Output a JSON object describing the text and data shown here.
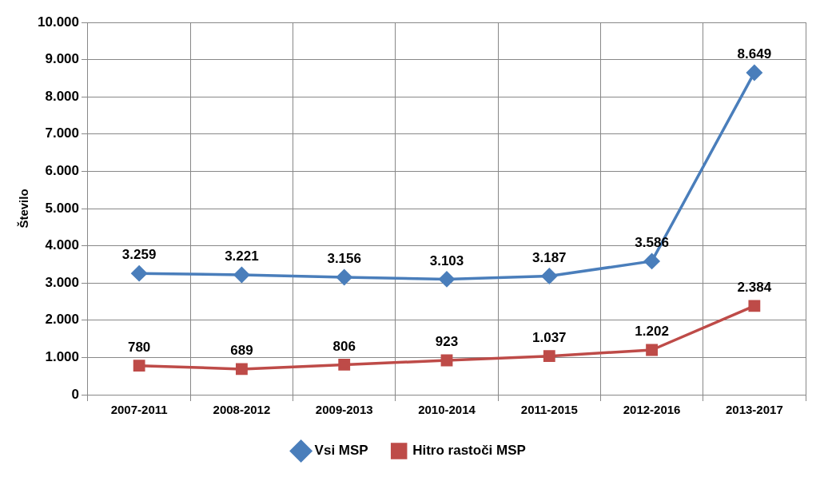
{
  "chart_data": {
    "type": "line",
    "ylabel": "Število",
    "categories": [
      "2007-2011",
      "2008-2012",
      "2009-2013",
      "2010-2014",
      "2011-2015",
      "2012-2016",
      "2013-2017"
    ],
    "series": [
      {
        "name": "Vsi MSP",
        "color": "#4a7ebb",
        "marker": "diamond",
        "values": [
          3259,
          3221,
          3156,
          3103,
          3187,
          3586,
          8649
        ],
        "value_labels": [
          "3.259",
          "3.221",
          "3.156",
          "3.103",
          "3.187",
          "3.586",
          "8.649"
        ]
      },
      {
        "name": "Hitro rastoči MSP",
        "color": "#be4b48",
        "marker": "square",
        "values": [
          780,
          689,
          806,
          923,
          1037,
          1202,
          2384
        ],
        "value_labels": [
          "780",
          "689",
          "806",
          "923",
          "1.037",
          "1.202",
          "2.384"
        ]
      }
    ],
    "ylim": [
      0,
      10000
    ],
    "yticks": [
      {
        "value": 0,
        "label": "0"
      },
      {
        "value": 1000,
        "label": "1.000"
      },
      {
        "value": 2000,
        "label": "2.000"
      },
      {
        "value": 3000,
        "label": "3.000"
      },
      {
        "value": 4000,
        "label": "4.000"
      },
      {
        "value": 5000,
        "label": "5.000"
      },
      {
        "value": 6000,
        "label": "6.000"
      },
      {
        "value": 7000,
        "label": "7.000"
      },
      {
        "value": 8000,
        "label": "8.000"
      },
      {
        "value": 9000,
        "label": "9.000"
      },
      {
        "value": 10000,
        "label": "10.000"
      }
    ],
    "grid": true,
    "legend": "bottom",
    "line_style": "solid"
  }
}
